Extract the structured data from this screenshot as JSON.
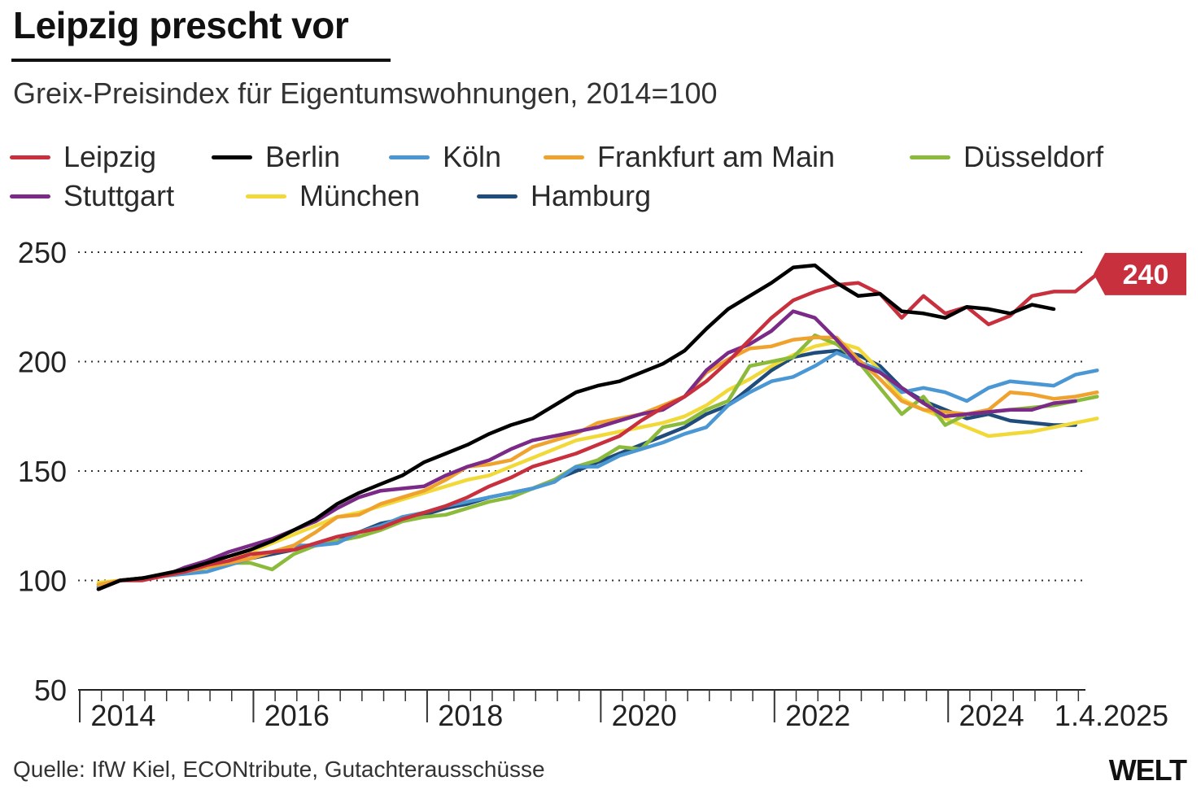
{
  "header": {
    "title": "Leipzig prescht vor",
    "subtitle": "Greix-Preisindex für Eigentumswohnungen, 2014=100"
  },
  "legend": [
    {
      "name": "Leipzig",
      "color": "#c8303e"
    },
    {
      "name": "Berlin",
      "color": "#000000"
    },
    {
      "name": "Köln",
      "color": "#4a97d4"
    },
    {
      "name": "Frankfurt am Main",
      "color": "#f0a22e"
    },
    {
      "name": "Düsseldorf",
      "color": "#8cbb3c"
    },
    {
      "name": "Stuttgart",
      "color": "#7b2a87"
    },
    {
      "name": "München",
      "color": "#f2d93a"
    },
    {
      "name": "Hamburg",
      "color": "#1f4c7a"
    }
  ],
  "footer": {
    "source": "Quelle: IfW Kiel, ECONtribute, Gutachterausschüsse",
    "logo": "WELT"
  },
  "chart_data": {
    "type": "line",
    "title": "Leipzig prescht vor",
    "subtitle": "Greix-Preisindex für Eigentumswohnungen, 2014=100",
    "xlabel": "",
    "ylabel": "",
    "ylim": [
      50,
      250
    ],
    "yticks": [
      250,
      200,
      150,
      100,
      50
    ],
    "grid": "dotted horizontal",
    "x_start": 2014.0,
    "x_step": 0.25,
    "x_tick_labels": [
      {
        "label": "2014",
        "x": 2014.5
      },
      {
        "label": "2016",
        "x": 2016.5
      },
      {
        "label": "2018",
        "x": 2018.5
      },
      {
        "label": "2020",
        "x": 2020.5
      },
      {
        "label": "2022",
        "x": 2022.5
      },
      {
        "label": "2024",
        "x": 2024.5
      },
      {
        "label": "1.4.2025",
        "x": 2025.6
      }
    ],
    "end_label": {
      "text": "240",
      "series": "Leipzig",
      "value": 240,
      "color": "#c8303e"
    },
    "series": [
      {
        "name": "Hamburg",
        "color": "#1f4c7a",
        "values": [
          97,
          100,
          101,
          102,
          104,
          106,
          108,
          110,
          112,
          114,
          116,
          118,
          122,
          126,
          128,
          130,
          133,
          135,
          138,
          140,
          142,
          146,
          150,
          154,
          158,
          162,
          166,
          170,
          176,
          180,
          188,
          196,
          202,
          204,
          205,
          203,
          198,
          188,
          182,
          178,
          174,
          176,
          173,
          172,
          171,
          171
        ]
      },
      {
        "name": "München",
        "color": "#f2d93a",
        "values": [
          99,
          100,
          101,
          102,
          104,
          106,
          109,
          113,
          117,
          121,
          125,
          129,
          131,
          134,
          137,
          140,
          143,
          146,
          148,
          152,
          156,
          160,
          164,
          166,
          168,
          170,
          172,
          175,
          180,
          187,
          192,
          198,
          203,
          207,
          209,
          206,
          196,
          183,
          178,
          174,
          170,
          166,
          167,
          168,
          170,
          172,
          174
        ]
      },
      {
        "name": "Düsseldorf",
        "color": "#8cbb3c",
        "values": [
          98,
          100,
          101,
          102,
          104,
          106,
          108,
          108,
          105,
          112,
          116,
          118,
          120,
          123,
          127,
          129,
          130,
          133,
          136,
          138,
          142,
          146,
          152,
          155,
          161,
          160,
          170,
          172,
          178,
          182,
          198,
          200,
          202,
          212,
          208,
          200,
          188,
          176,
          184,
          171,
          176,
          177,
          178,
          179,
          180,
          182,
          184
        ]
      },
      {
        "name": "Köln",
        "color": "#4a97d4",
        "values": [
          97,
          100,
          101,
          102,
          103,
          104,
          107,
          110,
          113,
          116,
          116,
          117,
          122,
          125,
          129,
          131,
          134,
          136,
          138,
          140,
          142,
          145,
          152,
          152,
          157,
          160,
          163,
          167,
          170,
          180,
          186,
          191,
          193,
          198,
          204,
          200,
          196,
          186,
          188,
          186,
          182,
          188,
          191,
          190,
          189,
          194,
          196
        ]
      },
      {
        "name": "Frankfurt am Main",
        "color": "#f0a22e",
        "values": [
          98,
          100,
          101,
          102,
          104,
          106,
          108,
          110,
          113,
          116,
          122,
          129,
          130,
          135,
          138,
          141,
          146,
          152,
          153,
          155,
          161,
          164,
          167,
          172,
          174,
          176,
          180,
          184,
          195,
          201,
          206,
          207,
          210,
          211,
          211,
          201,
          192,
          182,
          178,
          177,
          176,
          178,
          186,
          185,
          183,
          184,
          186
        ]
      },
      {
        "name": "Stuttgart",
        "color": "#7b2a87",
        "values": [
          96,
          100,
          101,
          102,
          106,
          109,
          113,
          116,
          119,
          123,
          127,
          133,
          138,
          141,
          142,
          143,
          148,
          152,
          155,
          160,
          164,
          166,
          168,
          170,
          173,
          176,
          178,
          184,
          196,
          204,
          208,
          214,
          223,
          220,
          210,
          199,
          195,
          188,
          181,
          175,
          176,
          177,
          178,
          178,
          181,
          182
        ]
      },
      {
        "name": "Leipzig",
        "color": "#c8303e",
        "values": [
          96,
          100,
          100,
          102,
          104,
          107,
          109,
          112,
          113,
          114,
          117,
          120,
          122,
          124,
          128,
          131,
          134,
          138,
          143,
          147,
          152,
          155,
          158,
          162,
          166,
          173,
          179,
          184,
          191,
          200,
          210,
          220,
          228,
          232,
          235,
          236,
          231,
          220,
          230,
          222,
          225,
          217,
          221,
          230,
          232,
          232,
          240
        ]
      },
      {
        "name": "Berlin",
        "color": "#000000",
        "values": [
          96,
          100,
          101,
          103,
          105,
          108,
          111,
          114,
          118,
          123,
          128,
          135,
          140,
          144,
          148,
          154,
          158,
          162,
          167,
          171,
          174,
          180,
          186,
          189,
          191,
          195,
          199,
          205,
          215,
          224,
          230,
          236,
          243,
          244,
          236,
          230,
          231,
          223,
          222,
          220,
          225,
          224,
          222,
          226,
          224
        ]
      }
    ]
  }
}
